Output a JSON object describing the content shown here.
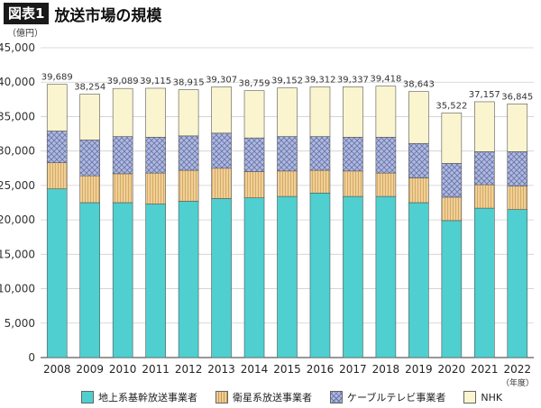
{
  "figure": {
    "tag": "図表1",
    "title": "放送市場の規模"
  },
  "chart_data": {
    "type": "bar",
    "stacked": true,
    "ylabel": "（億円）",
    "xunit": "（年度）",
    "ylim": [
      0,
      45000
    ],
    "yticks": [
      "0",
      "5,000",
      "10,000",
      "15,000",
      "20,000",
      "25,000",
      "30,000",
      "35,000",
      "40,000",
      "45,000"
    ],
    "categories": [
      "2008",
      "2009",
      "2010",
      "2011",
      "2012",
      "2013",
      "2014",
      "2015",
      "2016",
      "2017",
      "2018",
      "2019",
      "2020",
      "2021",
      "2022"
    ],
    "totals": [
      "39,689",
      "38,254",
      "39,089",
      "39,115",
      "38,915",
      "39,307",
      "38,759",
      "39,152",
      "39,312",
      "39,337",
      "39,418",
      "38,643",
      "35,522",
      "37,157",
      "36,845"
    ],
    "series": [
      {
        "name": "地上系基幹放送事業者",
        "color": "#4fcfd0",
        "values": [
          24500,
          22500,
          22500,
          22300,
          22700,
          23100,
          23200,
          23400,
          23900,
          23400,
          23400,
          22500,
          19900,
          21700,
          21500
        ]
      },
      {
        "name": "衛星系放送事業者",
        "color": "#f0cf96",
        "values": [
          3800,
          3900,
          4200,
          4500,
          4500,
          4400,
          3800,
          3700,
          3300,
          3700,
          3400,
          3600,
          3400,
          3400,
          3400
        ]
      },
      {
        "name": "ケーブルテレビ事業者",
        "color": "#aeb9df",
        "values": [
          4600,
          5200,
          5400,
          5200,
          5000,
          5100,
          4900,
          5000,
          4900,
          4900,
          5200,
          5000,
          4900,
          4800,
          5000
        ]
      },
      {
        "name": "NHK",
        "color": "#faf5cf",
        "values": [
          6789,
          6654,
          6989,
          7115,
          6715,
          6707,
          6859,
          7052,
          7212,
          7337,
          7418,
          7543,
          7322,
          7257,
          6945
        ]
      }
    ],
    "grid": true,
    "legend": "bottom"
  }
}
